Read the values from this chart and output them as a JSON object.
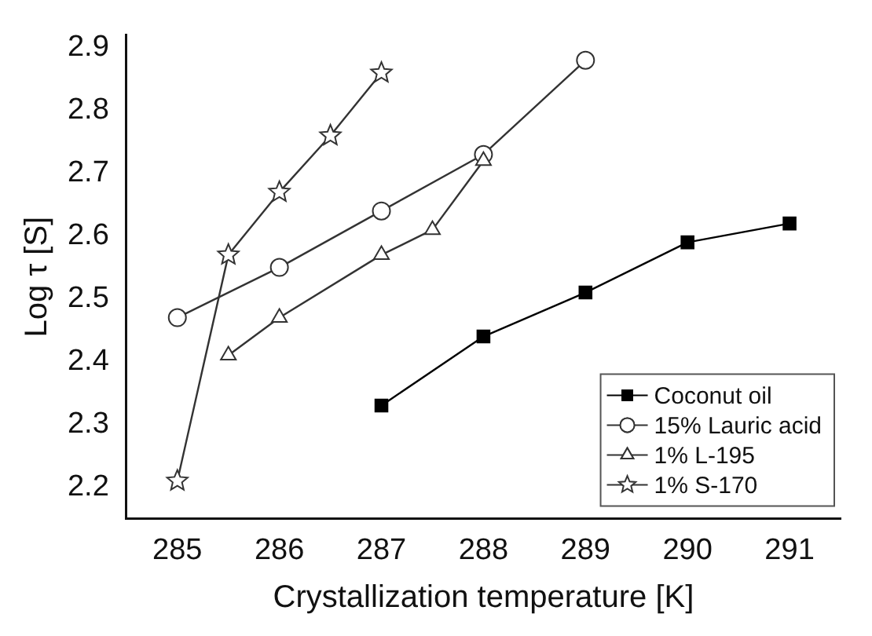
{
  "chart_data": {
    "type": "line",
    "xlabel": "Crystallization temperature [K]",
    "ylabel": "Log τ [S]",
    "xlim": [
      284.5,
      291.5
    ],
    "xticks": [
      285,
      286,
      287,
      288,
      289,
      290,
      291
    ],
    "ylim": [
      2.15,
      2.92
    ],
    "yticks": [
      2.2,
      2.3,
      2.4,
      2.5,
      2.6,
      2.7,
      2.8,
      2.9
    ],
    "grid": false,
    "legend": "bottom right",
    "line_style": "solid",
    "series": [
      {
        "name": "Coconut oil",
        "color": "#000000",
        "marker": "square",
        "x": [
          287,
          288,
          289,
          290,
          291
        ],
        "values": [
          2.33,
          2.44,
          2.51,
          2.59,
          2.62
        ]
      },
      {
        "name": "15% Lauric acid",
        "color": "#333333",
        "marker": "circle",
        "x": [
          285,
          286,
          287,
          288,
          289
        ],
        "values": [
          2.47,
          2.55,
          2.64,
          2.73,
          2.88
        ]
      },
      {
        "name": "1% L-195",
        "color": "#333333",
        "marker": "triangle",
        "x": [
          285.5,
          286,
          287,
          287.5,
          288
        ],
        "values": [
          2.41,
          2.47,
          2.57,
          2.61,
          2.72
        ]
      },
      {
        "name": "1% S-170",
        "color": "#333333",
        "marker": "star",
        "x": [
          285,
          285.5,
          286,
          286.5,
          287
        ],
        "values": [
          2.21,
          2.57,
          2.67,
          2.76,
          2.86
        ]
      }
    ]
  }
}
